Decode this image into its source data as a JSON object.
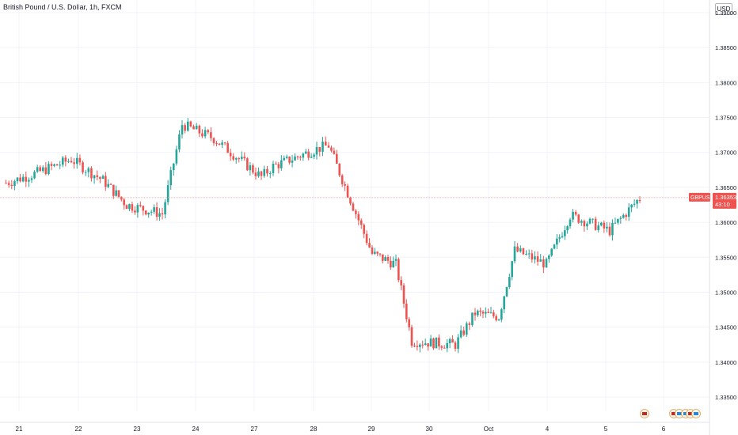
{
  "header": {
    "title": "British Pound / U.S. Dollar, 1h, FXCM",
    "currency": "USD"
  },
  "price_tag": {
    "symbol": "GBPUSD",
    "price": "1.36353",
    "countdown": "43:10"
  },
  "colors": {
    "up": "#26a69a",
    "down": "#ef5350",
    "grid": "#f0f3fa",
    "axis_text": "#131722"
  },
  "chart_data": {
    "type": "candlestick",
    "title": "British Pound / U.S. Dollar, 1h, FXCM",
    "ylim": [
      1.33,
      1.395
    ],
    "y_ticks": [
      "1.33500",
      "1.34000",
      "1.34500",
      "1.35000",
      "1.35500",
      "1.36000",
      "1.36500",
      "1.37000",
      "1.37500",
      "1.38000",
      "1.38500",
      "1.39000"
    ],
    "x_ticks": [
      "21",
      "22",
      "23",
      "24",
      "27",
      "28",
      "29",
      "30",
      "Oct",
      "4",
      "5",
      "6"
    ],
    "grid": true,
    "last_price": 1.36353,
    "close_path": [
      [
        "21",
        1.3668
      ],
      [
        "21",
        1.369
      ],
      [
        "22",
        1.366
      ],
      [
        "22",
        1.3625
      ],
      [
        "23",
        1.3612
      ],
      [
        "23",
        1.374
      ],
      [
        "24",
        1.372
      ],
      [
        "24",
        1.3665
      ],
      [
        "27",
        1.368
      ],
      [
        "27",
        1.3705
      ],
      [
        "28",
        1.371
      ],
      [
        "28",
        1.3555
      ],
      [
        "29",
        1.354
      ],
      [
        "29",
        1.343
      ],
      [
        "30",
        1.3425
      ],
      [
        "30",
        1.347
      ],
      [
        "Oct",
        1.3465
      ],
      [
        "Oct",
        1.356
      ],
      [
        "4",
        1.354
      ],
      [
        "4",
        1.361
      ],
      [
        "5",
        1.3588
      ],
      [
        "5",
        1.3635
      ]
    ]
  }
}
